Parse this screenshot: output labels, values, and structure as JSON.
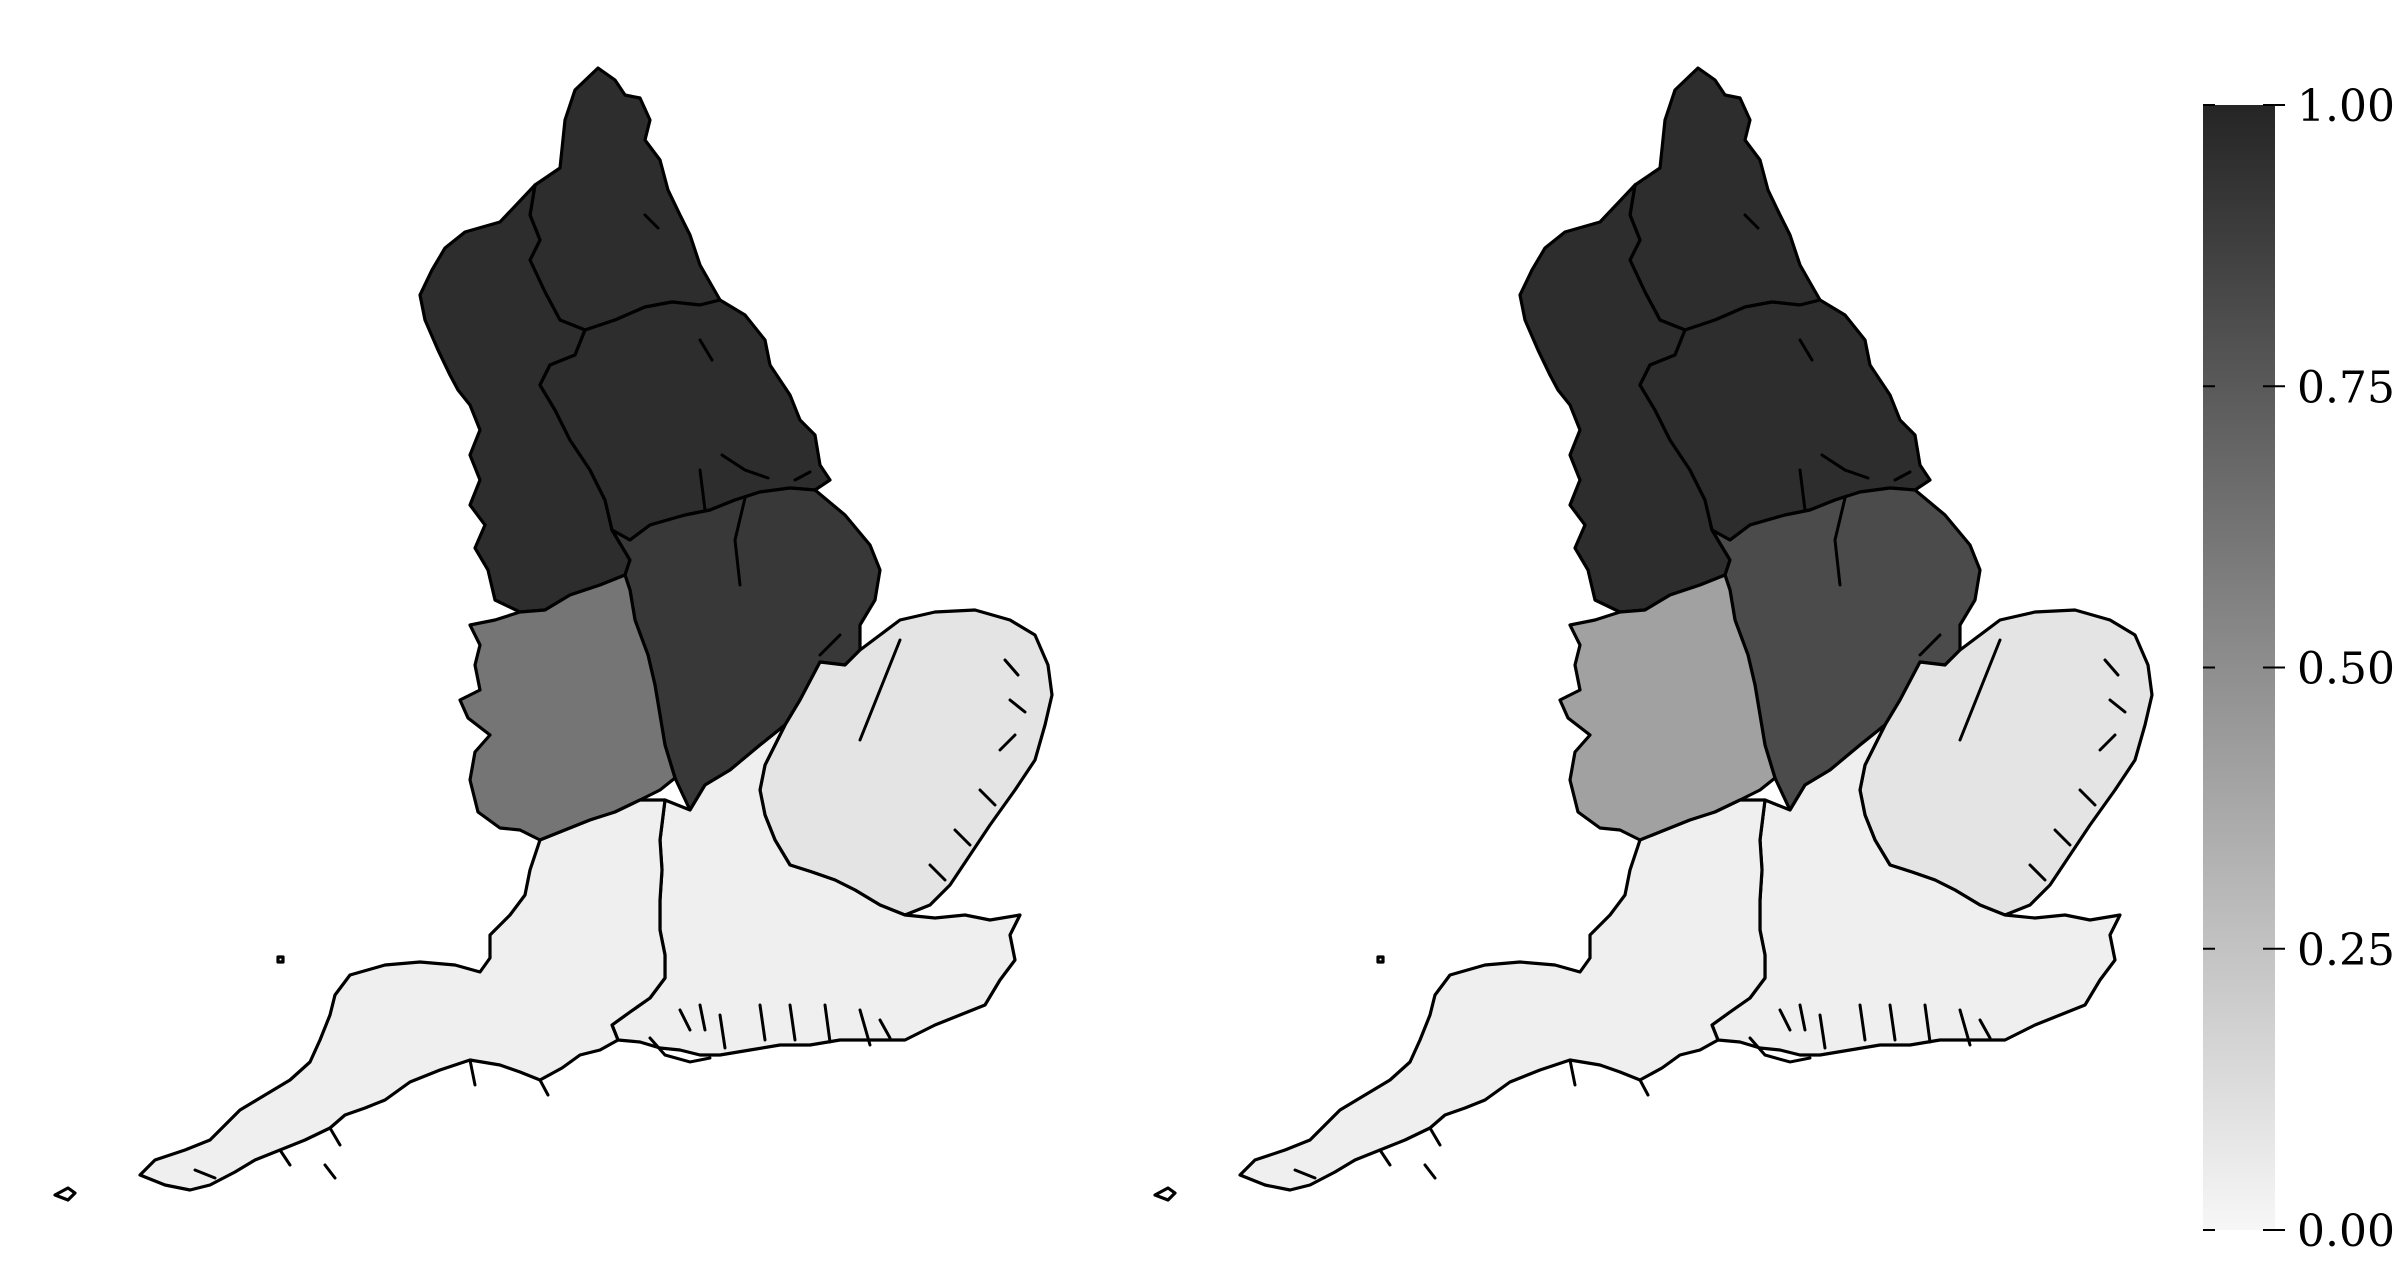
{
  "maps": [
    {
      "regions": [
        {
          "id": "north-east",
          "value": 0.96
        },
        {
          "id": "north-west",
          "value": 0.96
        },
        {
          "id": "yorkshire",
          "value": 0.96
        },
        {
          "id": "east-midlands",
          "value": 0.91
        },
        {
          "id": "west-midlands",
          "value": 0.62
        },
        {
          "id": "east-of-england",
          "value": 0.09
        },
        {
          "id": "south-west",
          "value": 0.04
        },
        {
          "id": "south-east",
          "value": 0.04
        }
      ]
    },
    {
      "regions": [
        {
          "id": "north-east",
          "value": 0.96
        },
        {
          "id": "north-west",
          "value": 0.96
        },
        {
          "id": "yorkshire",
          "value": 0.96
        },
        {
          "id": "east-midlands",
          "value": 0.82
        },
        {
          "id": "west-midlands",
          "value": 0.41
        },
        {
          "id": "east-of-england",
          "value": 0.09
        },
        {
          "id": "south-west",
          "value": 0.04
        },
        {
          "id": "south-east",
          "value": 0.04
        }
      ]
    }
  ],
  "colorbar": {
    "min": 0,
    "max": 1,
    "low_color": "#f7f7f7",
    "high_color": "#252525",
    "ticks": [
      {
        "value": 1.0,
        "label": "1.00"
      },
      {
        "value": 0.75,
        "label": "0.75"
      },
      {
        "value": 0.5,
        "label": "0.50"
      },
      {
        "value": 0.25,
        "label": "0.25"
      },
      {
        "value": 0.0,
        "label": "0.00"
      }
    ]
  }
}
